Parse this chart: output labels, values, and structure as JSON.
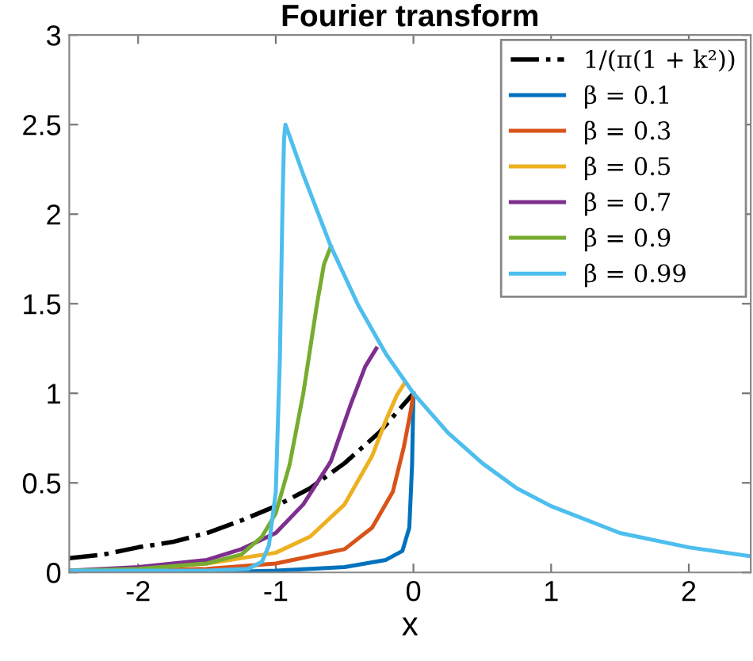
{
  "chart_data": {
    "type": "line",
    "title": "Fourier transform",
    "xlabel": "x",
    "xlim": [
      -2.5,
      2.45
    ],
    "xticks": [
      -2,
      -1,
      0,
      1,
      2
    ],
    "ylim": [
      0,
      3
    ],
    "yticks": [
      0,
      0.5,
      1,
      1.5,
      2,
      2.5,
      3
    ],
    "grid": false,
    "legend": "top right",
    "marker": "none",
    "series": [
      {
        "name": "1/(π(1 + k²))",
        "color": "#000000",
        "line_style": "dashdot",
        "x": [
          -2.5,
          -2.25,
          -2,
          -1.75,
          -1.5,
          -1.25,
          -1,
          -0.75,
          -0.5,
          -0.25,
          0
        ],
        "values": [
          0.08,
          0.1,
          0.14,
          0.17,
          0.22,
          0.29,
          0.37,
          0.47,
          0.61,
          0.78,
          1.0
        ]
      },
      {
        "name": "β = 0.1",
        "color": "#0072bd",
        "x": [
          -2.5,
          -1.5,
          -1,
          -0.5,
          -0.2,
          -0.08,
          -0.03,
          -0.01,
          0
        ],
        "values": [
          0.0,
          0.0,
          0.01,
          0.03,
          0.07,
          0.12,
          0.25,
          0.6,
          1.0
        ]
      },
      {
        "name": "β = 0.3",
        "color": "#d95319",
        "x": [
          -2.5,
          -2,
          -1.5,
          -1,
          -0.5,
          -0.3,
          -0.15,
          -0.07,
          -0.02,
          0
        ],
        "values": [
          0.01,
          0.01,
          0.02,
          0.05,
          0.13,
          0.25,
          0.45,
          0.7,
          0.9,
          1.0
        ]
      },
      {
        "name": "β = 0.5",
        "color": "#edb120",
        "x": [
          -2.5,
          -2,
          -1.5,
          -1,
          -0.75,
          -0.5,
          -0.3,
          -0.2,
          -0.12,
          -0.07
        ],
        "values": [
          0.01,
          0.02,
          0.05,
          0.11,
          0.2,
          0.38,
          0.65,
          0.85,
          0.99,
          1.05
        ]
      },
      {
        "name": "β = 0.7",
        "color": "#7e2f8e",
        "x": [
          -2.5,
          -2,
          -1.5,
          -1.25,
          -1,
          -0.8,
          -0.6,
          -0.45,
          -0.35,
          -0.27
        ],
        "values": [
          0.01,
          0.03,
          0.07,
          0.13,
          0.22,
          0.38,
          0.62,
          0.95,
          1.15,
          1.25
        ]
      },
      {
        "name": "β = 0.9",
        "color": "#77ac30",
        "x": [
          -2.5,
          -2,
          -1.5,
          -1.25,
          -1.1,
          -1,
          -0.9,
          -0.8,
          -0.7,
          -0.65,
          -0.6
        ],
        "values": [
          0.01,
          0.02,
          0.05,
          0.1,
          0.2,
          0.33,
          0.6,
          1.0,
          1.5,
          1.72,
          1.82
        ]
      },
      {
        "name": "β = 0.99",
        "color": "#4dbeee",
        "x": [
          -2.5,
          -1.5,
          -1.2,
          -1.1,
          -1.05,
          -1,
          -0.97,
          -0.95,
          -0.94,
          -0.93,
          -0.8,
          -0.6,
          -0.4,
          -0.2,
          0,
          0.25,
          0.5,
          0.75,
          1,
          1.5,
          2,
          2.45
        ],
        "values": [
          0.01,
          0.01,
          0.02,
          0.06,
          0.15,
          0.45,
          1.2,
          2.1,
          2.42,
          2.5,
          2.22,
          1.82,
          1.49,
          1.22,
          1.0,
          0.78,
          0.61,
          0.47,
          0.37,
          0.22,
          0.14,
          0.09
        ]
      }
    ]
  }
}
